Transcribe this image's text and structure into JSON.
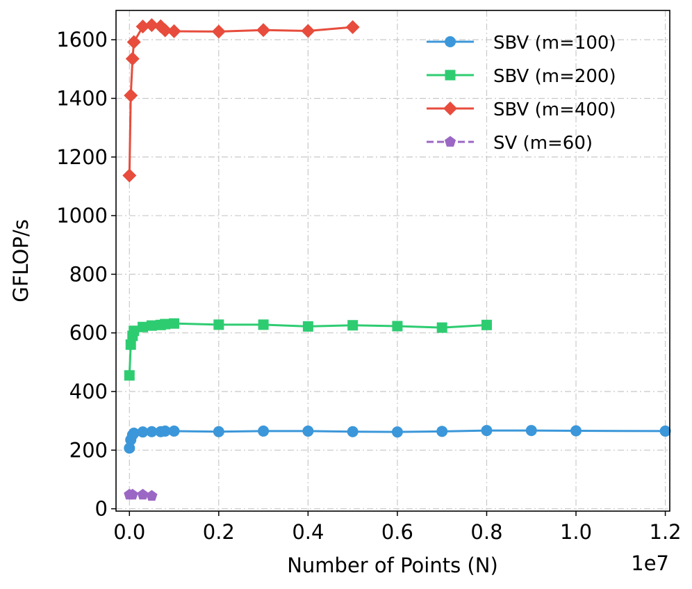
{
  "chart_data": {
    "type": "line",
    "title": "",
    "xlabel": "Number of Points (N)",
    "ylabel": "GFLOP/s",
    "x_offset_label": "1e7",
    "xlim": [
      -0.03,
      1.21
    ],
    "ylim": [
      -8,
      1700
    ],
    "xticks": [
      0.0,
      0.2,
      0.4,
      0.6,
      0.8,
      1.0,
      1.2
    ],
    "xtick_labels": [
      "0.0",
      "0.2",
      "0.4",
      "0.6",
      "0.8",
      "1.0",
      "1.2"
    ],
    "yticks": [
      0,
      200,
      400,
      600,
      800,
      1000,
      1200,
      1400,
      1600
    ],
    "ytick_labels": [
      "0",
      "200",
      "400",
      "600",
      "800",
      "1000",
      "1200",
      "1400",
      "1600"
    ],
    "grid": true,
    "legend_position": "top-right",
    "series": [
      {
        "name": "SBV (m=100)",
        "color": "#3b97d9",
        "marker": "circle",
        "linestyle": "solid",
        "x": [
          0.0,
          0.003,
          0.007,
          0.01,
          0.03,
          0.05,
          0.07,
          0.08,
          0.1,
          0.2,
          0.3,
          0.4,
          0.5,
          0.6,
          0.7,
          0.8,
          0.9,
          1.0,
          1.2
        ],
        "y": [
          207,
          235,
          252,
          258,
          262,
          263,
          263,
          265,
          265,
          263,
          265,
          265,
          263,
          262,
          264,
          267,
          267,
          266,
          265
        ]
      },
      {
        "name": "SBV (m=200)",
        "color": "#2ecc71",
        "marker": "square",
        "linestyle": "solid",
        "x": [
          0.0,
          0.003,
          0.007,
          0.01,
          0.03,
          0.05,
          0.07,
          0.08,
          0.1,
          0.2,
          0.3,
          0.4,
          0.5,
          0.6,
          0.7,
          0.8
        ],
        "y": [
          455,
          560,
          590,
          607,
          620,
          625,
          627,
          630,
          632,
          628,
          628,
          622,
          626,
          623,
          618,
          627
        ]
      },
      {
        "name": "SBV (m=400)",
        "color": "#e74c3c",
        "marker": "diamond",
        "linestyle": "solid",
        "x": [
          0.0,
          0.003,
          0.007,
          0.01,
          0.03,
          0.05,
          0.07,
          0.08,
          0.1,
          0.2,
          0.3,
          0.4,
          0.5
        ],
        "y": [
          1137,
          1410,
          1535,
          1592,
          1645,
          1650,
          1646,
          1632,
          1629,
          1628,
          1633,
          1630,
          1643
        ]
      },
      {
        "name": "SV (m=60)",
        "color": "#9b67c4",
        "marker": "pentagon",
        "linestyle": "dashed",
        "x": [
          0.0,
          0.007,
          0.03,
          0.05
        ],
        "y": [
          48,
          48,
          48,
          44
        ]
      }
    ]
  }
}
